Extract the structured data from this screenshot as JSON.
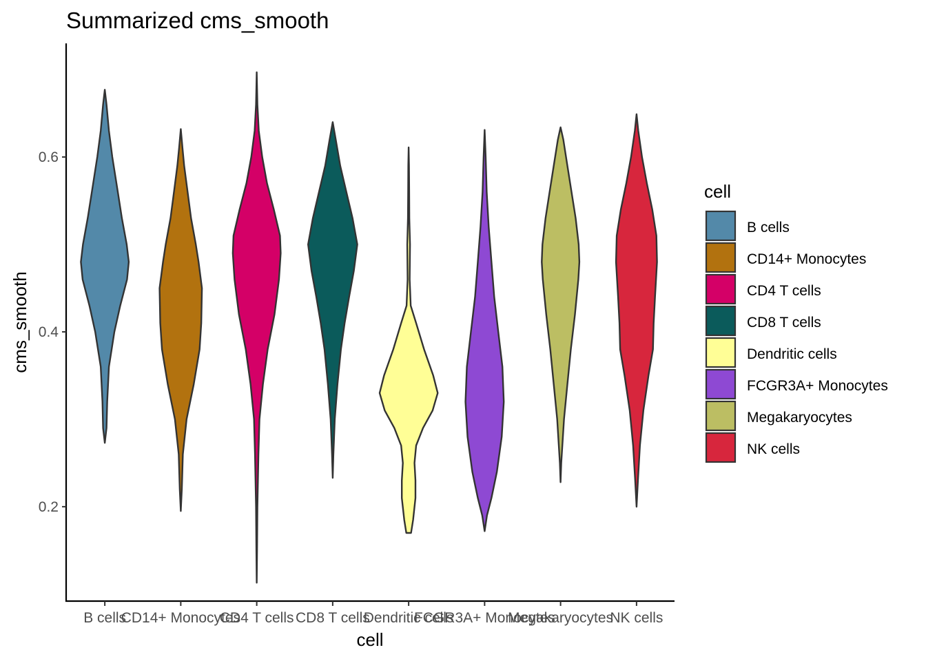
{
  "chart_data": {
    "type": "violin",
    "title": "Summarized cms_smooth",
    "xlabel": "cell",
    "ylabel": "cms_smooth",
    "categories": [
      "B cells",
      "CD14+ Monocytes",
      "CD4 T cells",
      "CD8 T cells",
      "Dendritic cells",
      "FCGR3A+ Monocytes",
      "Megakaryocytes",
      "NK cells"
    ],
    "ylim": [
      0.092,
      0.73
    ],
    "yticks": [
      0.2,
      0.4,
      0.6
    ],
    "ytick_labels": [
      "0.2",
      "0.4",
      "0.6"
    ],
    "grid": false,
    "legend": {
      "title": "cell",
      "placement": "right",
      "items": [
        "B cells",
        "CD14+ Monocytes",
        "CD4 T cells",
        "CD8 T cells",
        "Dendritic cells",
        "FCGR3A+ Monocytes",
        "Megakaryocytes",
        "NK cells"
      ]
    },
    "colors": [
      "#5389a9",
      "#b2720f",
      "#d40067",
      "#0b5b5b",
      "#fffe96",
      "#8e49d3",
      "#bcbe63",
      "#d7263d"
    ],
    "violins": [
      {
        "name": "B cells",
        "min": 0.273,
        "max": 0.677,
        "profile": [
          [
            0.273,
            0.0
          ],
          [
            0.29,
            0.05
          ],
          [
            0.32,
            0.07
          ],
          [
            0.36,
            0.12
          ],
          [
            0.4,
            0.28
          ],
          [
            0.43,
            0.45
          ],
          [
            0.46,
            0.65
          ],
          [
            0.48,
            0.7
          ],
          [
            0.5,
            0.64
          ],
          [
            0.53,
            0.5
          ],
          [
            0.56,
            0.38
          ],
          [
            0.6,
            0.22
          ],
          [
            0.63,
            0.12
          ],
          [
            0.66,
            0.05
          ],
          [
            0.677,
            0.0
          ]
        ]
      },
      {
        "name": "CD14+ Monocytes",
        "min": 0.195,
        "max": 0.632,
        "profile": [
          [
            0.195,
            0.0
          ],
          [
            0.22,
            0.03
          ],
          [
            0.26,
            0.06
          ],
          [
            0.3,
            0.17
          ],
          [
            0.34,
            0.38
          ],
          [
            0.38,
            0.55
          ],
          [
            0.41,
            0.6
          ],
          [
            0.45,
            0.62
          ],
          [
            0.48,
            0.52
          ],
          [
            0.5,
            0.44
          ],
          [
            0.53,
            0.3
          ],
          [
            0.56,
            0.2
          ],
          [
            0.59,
            0.1
          ],
          [
            0.61,
            0.05
          ],
          [
            0.632,
            0.0
          ]
        ]
      },
      {
        "name": "CD4 T cells",
        "min": 0.113,
        "max": 0.697,
        "profile": [
          [
            0.113,
            0.0
          ],
          [
            0.15,
            0.01
          ],
          [
            0.2,
            0.02
          ],
          [
            0.26,
            0.05
          ],
          [
            0.3,
            0.08
          ],
          [
            0.34,
            0.18
          ],
          [
            0.38,
            0.32
          ],
          [
            0.42,
            0.52
          ],
          [
            0.46,
            0.65
          ],
          [
            0.49,
            0.7
          ],
          [
            0.51,
            0.68
          ],
          [
            0.54,
            0.5
          ],
          [
            0.57,
            0.3
          ],
          [
            0.6,
            0.16
          ],
          [
            0.63,
            0.06
          ],
          [
            0.66,
            0.02
          ],
          [
            0.697,
            0.0
          ]
        ]
      },
      {
        "name": "CD8 T cells",
        "min": 0.233,
        "max": 0.64,
        "profile": [
          [
            0.233,
            0.0
          ],
          [
            0.26,
            0.02
          ],
          [
            0.3,
            0.06
          ],
          [
            0.34,
            0.14
          ],
          [
            0.38,
            0.24
          ],
          [
            0.41,
            0.35
          ],
          [
            0.44,
            0.48
          ],
          [
            0.47,
            0.62
          ],
          [
            0.5,
            0.72
          ],
          [
            0.53,
            0.58
          ],
          [
            0.56,
            0.4
          ],
          [
            0.59,
            0.22
          ],
          [
            0.62,
            0.09
          ],
          [
            0.64,
            0.0
          ]
        ]
      },
      {
        "name": "Dendritic cells",
        "min": 0.17,
        "max": 0.611,
        "profile": [
          [
            0.17,
            0.07
          ],
          [
            0.185,
            0.13
          ],
          [
            0.21,
            0.2
          ],
          [
            0.23,
            0.2
          ],
          [
            0.25,
            0.17
          ],
          [
            0.27,
            0.22
          ],
          [
            0.29,
            0.42
          ],
          [
            0.31,
            0.7
          ],
          [
            0.33,
            0.85
          ],
          [
            0.35,
            0.72
          ],
          [
            0.38,
            0.45
          ],
          [
            0.41,
            0.22
          ],
          [
            0.43,
            0.06
          ],
          [
            0.46,
            0.03
          ],
          [
            0.5,
            0.04
          ],
          [
            0.53,
            0.02
          ],
          [
            0.56,
            0.015
          ],
          [
            0.59,
            0.01
          ],
          [
            0.611,
            0.0
          ]
        ]
      },
      {
        "name": "FCGR3A+ Monocytes",
        "min": 0.172,
        "max": 0.631,
        "profile": [
          [
            0.172,
            0.0
          ],
          [
            0.19,
            0.07
          ],
          [
            0.21,
            0.2
          ],
          [
            0.24,
            0.36
          ],
          [
            0.28,
            0.5
          ],
          [
            0.32,
            0.56
          ],
          [
            0.36,
            0.52
          ],
          [
            0.4,
            0.4
          ],
          [
            0.44,
            0.28
          ],
          [
            0.48,
            0.2
          ],
          [
            0.52,
            0.12
          ],
          [
            0.56,
            0.06
          ],
          [
            0.6,
            0.03
          ],
          [
            0.631,
            0.0
          ]
        ]
      },
      {
        "name": "Megakaryocytes",
        "min": 0.228,
        "max": 0.634,
        "profile": [
          [
            0.228,
            0.0
          ],
          [
            0.25,
            0.02
          ],
          [
            0.3,
            0.1
          ],
          [
            0.34,
            0.2
          ],
          [
            0.38,
            0.3
          ],
          [
            0.42,
            0.42
          ],
          [
            0.46,
            0.52
          ],
          [
            0.48,
            0.55
          ],
          [
            0.5,
            0.53
          ],
          [
            0.53,
            0.44
          ],
          [
            0.56,
            0.32
          ],
          [
            0.59,
            0.2
          ],
          [
            0.62,
            0.08
          ],
          [
            0.634,
            0.0
          ]
        ]
      },
      {
        "name": "NK cells",
        "min": 0.2,
        "max": 0.649,
        "profile": [
          [
            0.2,
            0.0
          ],
          [
            0.23,
            0.04
          ],
          [
            0.27,
            0.1
          ],
          [
            0.31,
            0.2
          ],
          [
            0.35,
            0.35
          ],
          [
            0.38,
            0.48
          ],
          [
            0.41,
            0.5
          ],
          [
            0.44,
            0.54
          ],
          [
            0.48,
            0.6
          ],
          [
            0.51,
            0.58
          ],
          [
            0.54,
            0.46
          ],
          [
            0.57,
            0.3
          ],
          [
            0.6,
            0.16
          ],
          [
            0.63,
            0.05
          ],
          [
            0.649,
            0.0
          ]
        ]
      }
    ]
  }
}
